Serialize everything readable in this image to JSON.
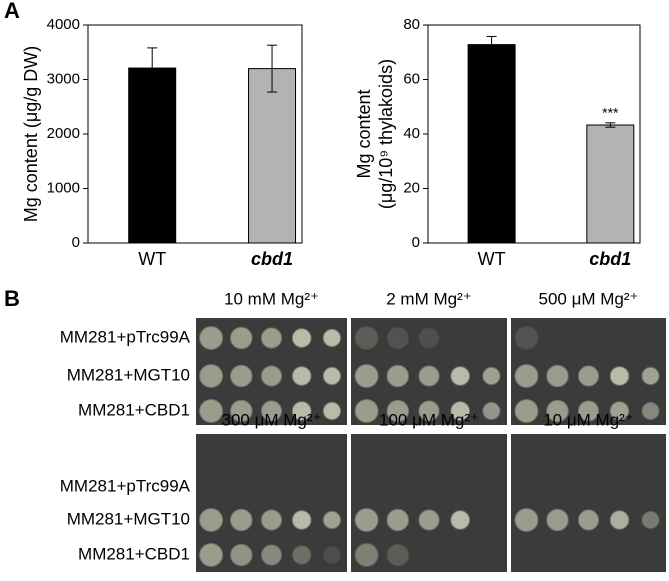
{
  "panels": {
    "a": "A",
    "b": "B"
  },
  "chart_data": [
    {
      "type": "bar",
      "ylabel": "Mg content (μg/g DW)",
      "categories": [
        "WT",
        "cbd1"
      ],
      "values": [
        3210,
        3200
      ],
      "errors": [
        370,
        430
      ],
      "colors": [
        "#000000",
        "#b3b3b3"
      ],
      "ylim": [
        0,
        4000
      ],
      "yticks": [
        0,
        1000,
        2000,
        3000,
        4000
      ]
    },
    {
      "type": "bar",
      "ylabel": [
        "Mg content",
        "(μg/10⁹ thylakoids)"
      ],
      "categories": [
        "WT",
        "cbd1"
      ],
      "values": [
        72.8,
        43.3
      ],
      "errors": [
        3,
        0.8
      ],
      "colors": [
        "#000000",
        "#b3b3b3"
      ],
      "ylim": [
        0,
        80
      ],
      "yticks": [
        0,
        20,
        40,
        60,
        80
      ],
      "annotations": [
        {
          "text": "***",
          "category": "cbd1"
        }
      ]
    }
  ],
  "growth_assay": {
    "conditions": [
      "10 mM Mg²⁺",
      "2 mM Mg²⁺",
      "500 μM Mg²⁺",
      "300 μM Mg²⁺",
      "100 μM Mg²⁺",
      "10 μM Mg²⁺"
    ],
    "strains": [
      "MM281+pTrc99A",
      "MM281+MGT10",
      "MM281+CBD1"
    ]
  }
}
